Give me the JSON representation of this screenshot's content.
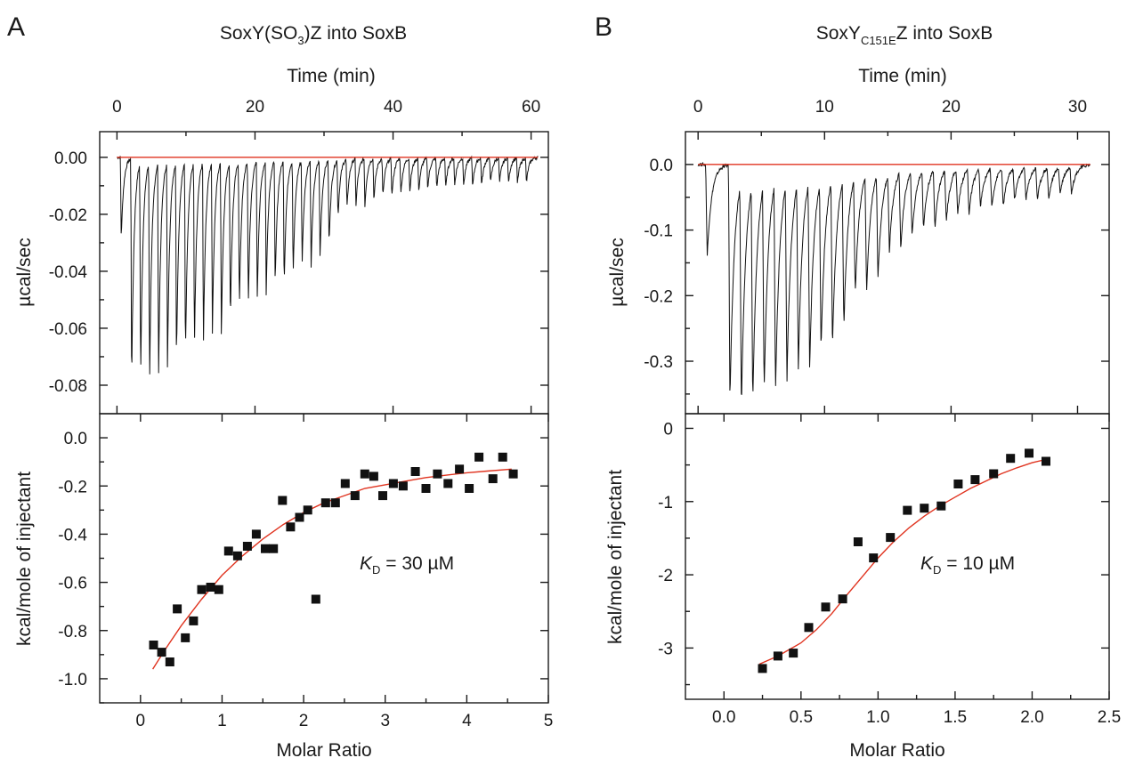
{
  "chart_data": [
    {
      "panel_letter": "A",
      "title_prefix": "SoxY(SO",
      "title_sub": "3",
      "title_suffix": ")Z into SoxB",
      "type": "scatter",
      "top": {
        "xlabel": "Time (min)",
        "ylabel": "µcal/sec",
        "xlim": [
          -2.5,
          62.5
        ],
        "ylim": [
          -0.09,
          0.009
        ],
        "xticks": [
          0,
          20,
          40,
          60
        ],
        "xtick_labels": [
          "0",
          "20",
          "40",
          "60"
        ],
        "yticks": [
          0.0,
          -0.02,
          -0.04,
          -0.06,
          -0.08
        ],
        "ytick_labels": [
          "0.00",
          "-0.02",
          "-0.04",
          "-0.06",
          "-0.08"
        ],
        "baseline": 0.0,
        "raw_trace": {
          "injection_times": [
            0.5,
            2,
            3.3,
            4.6,
            5.9,
            7.2,
            8.5,
            9.8,
            11.1,
            12.4,
            13.7,
            15,
            16.3,
            17.6,
            18.9,
            20.2,
            21.5,
            22.8,
            24.1,
            25.4,
            26.7,
            28,
            29.3,
            30.6,
            31.9,
            33.2,
            34.5,
            35.8,
            37.1,
            38.4,
            39.7,
            41,
            42.3,
            43.6,
            44.9,
            46.2,
            47.5,
            48.8,
            50.1,
            51.4,
            52.7,
            54,
            55.3,
            56.6,
            57.9,
            59.2
          ],
          "peak_values": [
            -0.029,
            -0.082,
            -0.079,
            -0.08,
            -0.077,
            -0.072,
            -0.071,
            -0.07,
            -0.068,
            -0.066,
            -0.062,
            -0.063,
            -0.058,
            -0.054,
            -0.052,
            -0.05,
            -0.047,
            -0.045,
            -0.045,
            -0.042,
            -0.038,
            -0.039,
            -0.035,
            -0.031,
            -0.021,
            -0.018,
            -0.017,
            -0.017,
            -0.015,
            -0.014,
            -0.014,
            -0.013,
            -0.012,
            -0.012,
            -0.011,
            -0.011,
            -0.011,
            -0.01,
            -0.01,
            -0.01,
            -0.01,
            -0.009,
            -0.009,
            -0.009,
            -0.009,
            -0.009
          ],
          "x_start": 0,
          "x_end": 61
        }
      },
      "bottom": {
        "xlabel": "Molar Ratio",
        "ylabel": "kcal/mole of injectant",
        "xlim": [
          -0.5,
          5
        ],
        "ylim": [
          -1.1,
          0.1
        ],
        "xticks": [
          0,
          1,
          2,
          3,
          4,
          5
        ],
        "xtick_labels": [
          "0",
          "1",
          "2",
          "3",
          "4",
          "5"
        ],
        "yticks": [
          0.0,
          -0.2,
          -0.4,
          -0.6,
          -0.8,
          -1.0
        ],
        "ytick_labels": [
          "0.0",
          "-0.2",
          "-0.4",
          "-0.6",
          "-0.8",
          "-1.0"
        ],
        "annotation_k": "K",
        "annotation_sub": "D",
        "annotation_rest": " = 30 µM",
        "points": [
          [
            0.16,
            -0.86
          ],
          [
            0.26,
            -0.89
          ],
          [
            0.36,
            -0.93
          ],
          [
            0.45,
            -0.71
          ],
          [
            0.55,
            -0.83
          ],
          [
            0.65,
            -0.76
          ],
          [
            0.75,
            -0.63
          ],
          [
            0.86,
            -0.62
          ],
          [
            0.96,
            -0.63
          ],
          [
            1.08,
            -0.47
          ],
          [
            1.19,
            -0.49
          ],
          [
            1.31,
            -0.45
          ],
          [
            1.42,
            -0.4
          ],
          [
            1.53,
            -0.46
          ],
          [
            1.63,
            -0.46
          ],
          [
            1.74,
            -0.26
          ],
          [
            1.84,
            -0.37
          ],
          [
            1.95,
            -0.33
          ],
          [
            2.05,
            -0.3
          ],
          [
            2.15,
            -0.67
          ],
          [
            2.27,
            -0.27
          ],
          [
            2.39,
            -0.27
          ],
          [
            2.51,
            -0.19
          ],
          [
            2.63,
            -0.24
          ],
          [
            2.75,
            -0.15
          ],
          [
            2.86,
            -0.16
          ],
          [
            2.97,
            -0.24
          ],
          [
            3.1,
            -0.19
          ],
          [
            3.22,
            -0.2
          ],
          [
            3.37,
            -0.14
          ],
          [
            3.5,
            -0.21
          ],
          [
            3.64,
            -0.15
          ],
          [
            3.77,
            -0.19
          ],
          [
            3.91,
            -0.13
          ],
          [
            4.03,
            -0.21
          ],
          [
            4.15,
            -0.08
          ],
          [
            4.32,
            -0.17
          ],
          [
            4.44,
            -0.08
          ],
          [
            4.57,
            -0.15
          ]
        ],
        "fit": {
          "x": [
            0.15,
            0.3,
            0.5,
            0.75,
            1.0,
            1.25,
            1.5,
            1.75,
            2.0,
            2.25,
            2.5,
            2.75,
            3.0,
            3.25,
            3.5,
            3.75,
            4.0,
            4.25,
            4.55
          ],
          "y": [
            -0.96,
            -0.88,
            -0.78,
            -0.67,
            -0.57,
            -0.49,
            -0.42,
            -0.36,
            -0.31,
            -0.27,
            -0.24,
            -0.21,
            -0.195,
            -0.18,
            -0.165,
            -0.155,
            -0.145,
            -0.138,
            -0.13
          ]
        }
      }
    },
    {
      "panel_letter": "B",
      "title_prefix": "SoxY",
      "title_sub": "C151E",
      "title_suffix": "Z into SoxB",
      "type": "scatter",
      "top": {
        "xlabel": "Time (min)",
        "ylabel": "µcal/sec",
        "xlim": [
          -1,
          32.5
        ],
        "ylim": [
          -0.38,
          0.05
        ],
        "xticks": [
          0,
          10,
          20,
          30
        ],
        "xtick_labels": [
          "0",
          "10",
          "20",
          "30"
        ],
        "yticks": [
          0.0,
          -0.1,
          -0.2,
          -0.3
        ],
        "ytick_labels": [
          "0.0",
          "-0.1",
          "-0.2",
          "-0.3"
        ],
        "baseline": 0.0,
        "raw_trace": {
          "injection_times": [
            0.6,
            2.4,
            3.3,
            4.2,
            5.1,
            6.0,
            6.9,
            7.8,
            8.7,
            9.6,
            10.5,
            11.4,
            12.3,
            13.2,
            14.1,
            15.0,
            15.9,
            16.8,
            17.7,
            18.6,
            19.5,
            20.4,
            21.3,
            22.2,
            23.1,
            24.0,
            24.9,
            25.8,
            26.7,
            27.6,
            28.5,
            29.4
          ],
          "peak_values": [
            -0.14,
            -0.36,
            -0.35,
            -0.34,
            -0.32,
            -0.32,
            -0.31,
            -0.29,
            -0.29,
            -0.26,
            -0.26,
            -0.23,
            -0.18,
            -0.18,
            -0.16,
            -0.12,
            -0.12,
            -0.1,
            -0.09,
            -0.09,
            -0.08,
            -0.07,
            -0.07,
            -0.06,
            -0.06,
            -0.06,
            -0.05,
            -0.05,
            -0.05,
            -0.05,
            -0.04,
            -0.04
          ],
          "x_start": 0,
          "x_end": 31
        }
      },
      "bottom": {
        "xlabel": "Molar Ratio",
        "ylabel": "kcal/mole of injectant",
        "xlim": [
          -0.25,
          2.5
        ],
        "ylim": [
          -3.7,
          0.2
        ],
        "xticks": [
          0.0,
          0.5,
          1.0,
          1.5,
          2.0,
          2.5
        ],
        "xtick_labels": [
          "0.0",
          "0.5",
          "1.0",
          "1.5",
          "2.0",
          "2.5"
        ],
        "yticks": [
          0,
          -1,
          -2,
          -3
        ],
        "ytick_labels": [
          "0",
          "-1",
          "-2",
          "-3"
        ],
        "annotation_k": "K",
        "annotation_sub": "D",
        "annotation_rest": " = 10 µM",
        "points": [
          [
            0.25,
            -3.28
          ],
          [
            0.35,
            -3.11
          ],
          [
            0.45,
            -3.07
          ],
          [
            0.55,
            -2.72
          ],
          [
            0.66,
            -2.44
          ],
          [
            0.77,
            -2.33
          ],
          [
            0.87,
            -1.55
          ],
          [
            0.97,
            -1.77
          ],
          [
            1.08,
            -1.49
          ],
          [
            1.19,
            -1.12
          ],
          [
            1.3,
            -1.09
          ],
          [
            1.41,
            -1.06
          ],
          [
            1.52,
            -0.76
          ],
          [
            1.63,
            -0.7
          ],
          [
            1.75,
            -0.62
          ],
          [
            1.86,
            -0.41
          ],
          [
            1.98,
            -0.34
          ],
          [
            2.09,
            -0.45
          ]
        ],
        "fit": {
          "x": [
            0.23,
            0.35,
            0.5,
            0.6,
            0.7,
            0.8,
            0.9,
            1.0,
            1.1,
            1.2,
            1.3,
            1.4,
            1.5,
            1.6,
            1.7,
            1.8,
            1.9,
            2.0,
            2.1
          ],
          "y": [
            -3.22,
            -3.11,
            -2.93,
            -2.75,
            -2.53,
            -2.27,
            -2.02,
            -1.77,
            -1.55,
            -1.36,
            -1.2,
            -1.06,
            -0.94,
            -0.82,
            -0.72,
            -0.62,
            -0.54,
            -0.47,
            -0.42
          ]
        }
      }
    }
  ]
}
